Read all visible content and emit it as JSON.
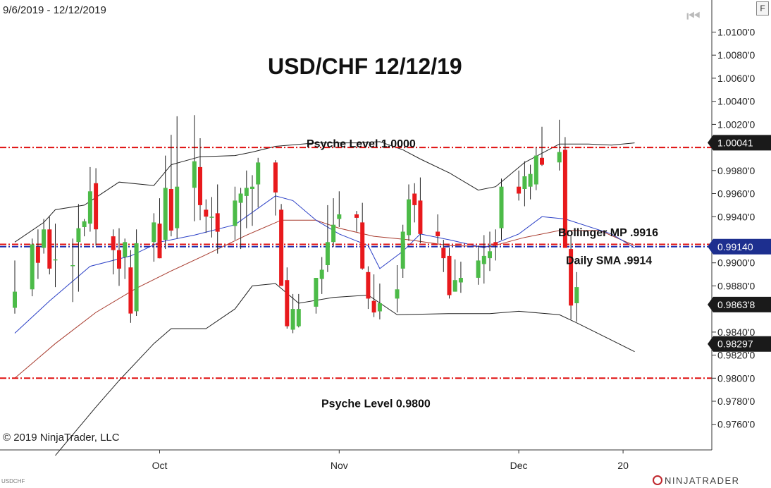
{
  "header": {
    "date_range": "9/6/2019 - 12/12/2019"
  },
  "footer": {
    "copyright": "© 2019 NinjaTrader, LLC",
    "symbol": "USDCHF",
    "logo_text": "NINJATRADER"
  },
  "toolbar": {
    "f_label": "F",
    "nav_glyph": "⏮"
  },
  "chart_data": {
    "type": "candlestick",
    "title": "USD/CHF 12/12/19",
    "y_axis": {
      "ylim": [
        0.9745,
        1.0117
      ],
      "ticks": [
        "1.0100'0",
        "1.0080'0",
        "1.0060'0",
        "1.0040'0",
        "1.0020'0",
        "0.9980'0",
        "0.9960'0",
        "0.9940'0",
        "0.9900'0",
        "0.9880'0",
        "0.9840'0",
        "0.9820'0",
        "0.9800'0",
        "0.9780'0",
        "0.9760'0"
      ]
    },
    "x_axis": {
      "ticks": [
        {
          "label": "Oct",
          "day": "2019-10-01"
        },
        {
          "label": "Nov",
          "day": "2019-11-01"
        },
        {
          "label": "Dec",
          "day": "2019-12-02"
        },
        {
          "label": "20",
          "day": "2019-12-20"
        }
      ]
    },
    "price_tags": [
      {
        "label": "1.00041",
        "value": 1.00041,
        "color": "#1a1a1a"
      },
      {
        "label": "0.99140",
        "value": 0.9914,
        "color": "#1d2f8f"
      },
      {
        "label": "0.9863'8",
        "value": 0.98638,
        "color": "#1a1a1a"
      },
      {
        "label": "0.98297",
        "value": 0.98297,
        "color": "#1a1a1a"
      }
    ],
    "horizontal_lines": [
      {
        "name": "psyche_high",
        "value": 1.0,
        "color": "#e01010"
      },
      {
        "name": "bollinger_mp",
        "value": 0.9916,
        "color": "#e01010"
      },
      {
        "name": "daily_sma",
        "value": 0.9914,
        "color": "#1d2fb0"
      },
      {
        "name": "psyche_low",
        "value": 0.98,
        "color": "#e01010"
      }
    ],
    "annotations": [
      {
        "text": "Psyche Level 1.0000",
        "value": 1.0003
      },
      {
        "text": "Bollinger MP .9916",
        "value": 0.9926
      },
      {
        "text": "Daily SMA .9914",
        "value": 0.9902
      },
      {
        "text": "Psyche Level 0.9800",
        "value": 0.9778
      }
    ],
    "colors": {
      "up": "#4cbb48",
      "down": "#e8191c",
      "sma": "#2a3fc6",
      "midband": "#a83b2e",
      "bands": "#222222"
    },
    "candles": [
      {
        "d": "2019-09-06",
        "o": 0.9861,
        "h": 0.9902,
        "l": 0.9856,
        "c": 0.9875
      },
      {
        "d": "2019-09-09",
        "o": 0.9877,
        "h": 0.9921,
        "l": 0.9871,
        "c": 0.9916
      },
      {
        "d": "2019-09-10",
        "o": 0.9914,
        "h": 0.9929,
        "l": 0.9886,
        "c": 0.99
      },
      {
        "d": "2019-09-11",
        "o": 0.9913,
        "h": 0.9938,
        "l": 0.9908,
        "c": 0.9929
      },
      {
        "d": "2019-09-12",
        "o": 0.9929,
        "h": 0.994,
        "l": 0.989,
        "c": 0.9895
      },
      {
        "d": "2019-09-13",
        "o": 0.9903,
        "h": 0.9934,
        "l": 0.9879,
        "c": 0.9903
      },
      {
        "d": "2019-09-16",
        "o": 0.9898,
        "h": 0.9921,
        "l": 0.9866,
        "c": 0.9898
      },
      {
        "d": "2019-09-17",
        "o": 0.9918,
        "h": 0.9951,
        "l": 0.9875,
        "c": 0.993
      },
      {
        "d": "2019-09-18",
        "o": 0.9931,
        "h": 0.9938,
        "l": 0.9923,
        "c": 0.9936
      },
      {
        "d": "2019-09-19",
        "o": 0.9934,
        "h": 0.9983,
        "l": 0.9927,
        "c": 0.9962
      },
      {
        "d": "2019-09-20",
        "o": 0.9969,
        "h": 0.9982,
        "l": 0.9915,
        "c": 0.9929
      },
      {
        "d": "2019-09-23",
        "o": 0.9923,
        "h": 0.9929,
        "l": 0.989,
        "c": 0.9911
      },
      {
        "d": "2019-09-24",
        "o": 0.9911,
        "h": 0.993,
        "l": 0.988,
        "c": 0.9895
      },
      {
        "d": "2019-09-25",
        "o": 0.9905,
        "h": 0.9921,
        "l": 0.9886,
        "c": 0.9918
      },
      {
        "d": "2019-09-26",
        "o": 0.9896,
        "h": 0.9911,
        "l": 0.9848,
        "c": 0.9856
      },
      {
        "d": "2019-09-27",
        "o": 0.9858,
        "h": 0.9929,
        "l": 0.9854,
        "c": 0.9917
      },
      {
        "d": "2019-09-30",
        "o": 0.9918,
        "h": 0.9943,
        "l": 0.9901,
        "c": 0.9935
      },
      {
        "d": "2019-10-01",
        "o": 0.9934,
        "h": 0.9956,
        "l": 0.9904,
        "c": 0.9904
      },
      {
        "d": "2019-10-02",
        "o": 0.992,
        "h": 0.9993,
        "l": 0.9912,
        "c": 0.9965
      },
      {
        "d": "2019-10-03",
        "o": 0.9964,
        "h": 1.0011,
        "l": 0.9923,
        "c": 0.9928
      },
      {
        "d": "2019-10-04",
        "o": 0.993,
        "h": 1.0027,
        "l": 0.9921,
        "c": 0.9966
      },
      {
        "d": "2019-10-07",
        "o": 0.9965,
        "h": 1.0028,
        "l": 0.9936,
        "c": 0.9988
      },
      {
        "d": "2019-10-08",
        "o": 0.9983,
        "h": 1.0008,
        "l": 0.9937,
        "c": 0.995
      },
      {
        "d": "2019-10-09",
        "o": 0.9946,
        "h": 0.9955,
        "l": 0.9926,
        "c": 0.994
      },
      {
        "d": "2019-10-10",
        "o": 0.994,
        "h": 0.9957,
        "l": 0.9922,
        "c": 0.994
      },
      {
        "d": "2019-10-11",
        "o": 0.9943,
        "h": 0.9968,
        "l": 0.9908,
        "c": 0.9927
      },
      {
        "d": "2019-10-14",
        "o": 0.9932,
        "h": 0.9966,
        "l": 0.992,
        "c": 0.9954
      },
      {
        "d": "2019-10-15",
        "o": 0.9952,
        "h": 0.9965,
        "l": 0.9912,
        "c": 0.996
      },
      {
        "d": "2019-10-16",
        "o": 0.9958,
        "h": 0.998,
        "l": 0.993,
        "c": 0.9965
      },
      {
        "d": "2019-10-17",
        "o": 0.9964,
        "h": 0.9976,
        "l": 0.9932,
        "c": 0.9966
      },
      {
        "d": "2019-10-18",
        "o": 0.9968,
        "h": 0.9991,
        "l": 0.9948,
        "c": 0.9987
      },
      {
        "d": "2019-10-21",
        "o": 0.9987,
        "h": 0.9989,
        "l": 0.9941,
        "c": 0.9961
      },
      {
        "d": "2019-10-22",
        "o": 0.9946,
        "h": 0.9951,
        "l": 0.988,
        "c": 0.988
      },
      {
        "d": "2019-10-23",
        "o": 0.9885,
        "h": 0.9896,
        "l": 0.9843,
        "c": 0.9845
      },
      {
        "d": "2019-10-24",
        "o": 0.9842,
        "h": 0.9873,
        "l": 0.9839,
        "c": 0.986
      },
      {
        "d": "2019-10-25",
        "o": 0.9845,
        "h": 0.9873,
        "l": 0.9844,
        "c": 0.986
      },
      {
        "d": "2019-10-28",
        "o": 0.9862,
        "h": 0.9887,
        "l": 0.9856,
        "c": 0.9887
      },
      {
        "d": "2019-10-29",
        "o": 0.9886,
        "h": 0.9905,
        "l": 0.9873,
        "c": 0.9894
      },
      {
        "d": "2019-10-30",
        "o": 0.9898,
        "h": 0.995,
        "l": 0.9892,
        "c": 0.9918
      },
      {
        "d": "2019-10-31",
        "o": 0.9918,
        "h": 0.9956,
        "l": 0.9914,
        "c": 0.9933
      },
      {
        "d": "2019-11-01",
        "o": 0.9938,
        "h": 0.9962,
        "l": 0.9931,
        "c": 0.9942
      },
      {
        "d": "2019-11-04",
        "o": 0.9942,
        "h": 0.9945,
        "l": 0.9927,
        "c": 0.9939
      },
      {
        "d": "2019-11-05",
        "o": 0.9935,
        "h": 0.9952,
        "l": 0.9894,
        "c": 0.9895
      },
      {
        "d": "2019-11-06",
        "o": 0.9892,
        "h": 0.9897,
        "l": 0.986,
        "c": 0.9869
      },
      {
        "d": "2019-11-07",
        "o": 0.9867,
        "h": 0.989,
        "l": 0.9853,
        "c": 0.9857
      },
      {
        "d": "2019-11-08",
        "o": 0.9858,
        "h": 0.9882,
        "l": 0.9851,
        "c": 0.9865
      },
      {
        "d": "2019-11-11",
        "o": 0.9869,
        "h": 0.9898,
        "l": 0.9857,
        "c": 0.9877
      },
      {
        "d": "2019-11-12",
        "o": 0.9895,
        "h": 0.9933,
        "l": 0.9887,
        "c": 0.9927
      },
      {
        "d": "2019-11-13",
        "o": 0.9924,
        "h": 0.9968,
        "l": 0.9919,
        "c": 0.9955
      },
      {
        "d": "2019-11-14",
        "o": 0.996,
        "h": 0.9969,
        "l": 0.9935,
        "c": 0.995
      },
      {
        "d": "2019-11-15",
        "o": 0.9954,
        "h": 0.9974,
        "l": 0.9917,
        "c": 0.9925
      },
      {
        "d": "2019-11-18",
        "o": 0.9927,
        "h": 0.9942,
        "l": 0.9917,
        "c": 0.9923
      },
      {
        "d": "2019-11-19",
        "o": 0.9913,
        "h": 0.992,
        "l": 0.9892,
        "c": 0.9904
      },
      {
        "d": "2019-11-20",
        "o": 0.9906,
        "h": 0.9913,
        "l": 0.9869,
        "c": 0.9872
      },
      {
        "d": "2019-11-21",
        "o": 0.9875,
        "h": 0.9903,
        "l": 0.9875,
        "c": 0.9885
      },
      {
        "d": "2019-11-22",
        "o": 0.9883,
        "h": 0.9901,
        "l": 0.9874,
        "c": 0.9887
      },
      {
        "d": "2019-11-25",
        "o": 0.9887,
        "h": 0.9915,
        "l": 0.9881,
        "c": 0.9902
      },
      {
        "d": "2019-11-26",
        "o": 0.9899,
        "h": 0.9924,
        "l": 0.9882,
        "c": 0.9906
      },
      {
        "d": "2019-11-27",
        "o": 0.9904,
        "h": 0.9927,
        "l": 0.9893,
        "c": 0.991
      },
      {
        "d": "2019-11-28",
        "o": 0.9918,
        "h": 0.9929,
        "l": 0.9902,
        "c": 0.9915
      },
      {
        "d": "2019-11-29",
        "o": 0.993,
        "h": 0.9973,
        "l": 0.992,
        "c": 0.9966
      },
      {
        "d": "2019-12-02",
        "o": 0.9966,
        "h": 0.998,
        "l": 0.9954,
        "c": 0.996
      },
      {
        "d": "2019-12-03",
        "o": 0.9964,
        "h": 0.9988,
        "l": 0.9949,
        "c": 0.9975
      },
      {
        "d": "2019-12-04",
        "o": 0.9966,
        "h": 0.9985,
        "l": 0.9955,
        "c": 0.9977
      },
      {
        "d": "2019-12-05",
        "o": 0.9968,
        "h": 1.0,
        "l": 0.9963,
        "c": 0.9993
      },
      {
        "d": "2019-12-06",
        "o": 0.9991,
        "h": 1.0018,
        "l": 0.9984,
        "c": 0.9985
      },
      {
        "d": "2019-12-09",
        "o": 0.9987,
        "h": 1.0024,
        "l": 0.998,
        "c": 0.9996
      },
      {
        "d": "2019-12-10",
        "o": 0.9998,
        "h": 1.0009,
        "l": 0.9913,
        "c": 0.9913
      },
      {
        "d": "2019-12-11",
        "o": 0.9912,
        "h": 0.9923,
        "l": 0.9851,
        "c": 0.9863
      },
      {
        "d": "2019-12-12",
        "o": 0.9865,
        "h": 0.9892,
        "l": 0.9849,
        "c": 0.9879
      }
    ],
    "sma": [
      {
        "d": "2019-09-06",
        "v": 0.9839
      },
      {
        "d": "2019-09-12",
        "v": 0.9867
      },
      {
        "d": "2019-09-19",
        "v": 0.9897
      },
      {
        "d": "2019-09-26",
        "v": 0.9906
      },
      {
        "d": "2019-10-01",
        "v": 0.9918
      },
      {
        "d": "2019-10-07",
        "v": 0.9924
      },
      {
        "d": "2019-10-14",
        "v": 0.9933
      },
      {
        "d": "2019-10-21",
        "v": 0.9958
      },
      {
        "d": "2019-10-24",
        "v": 0.9954
      },
      {
        "d": "2019-10-28",
        "v": 0.9937
      },
      {
        "d": "2019-11-01",
        "v": 0.9925
      },
      {
        "d": "2019-11-06",
        "v": 0.9915
      },
      {
        "d": "2019-11-08",
        "v": 0.9895
      },
      {
        "d": "2019-11-12",
        "v": 0.991
      },
      {
        "d": "2019-11-15",
        "v": 0.9925
      },
      {
        "d": "2019-11-20",
        "v": 0.992
      },
      {
        "d": "2019-11-26",
        "v": 0.9913
      },
      {
        "d": "2019-12-02",
        "v": 0.9925
      },
      {
        "d": "2019-12-06",
        "v": 0.994
      },
      {
        "d": "2019-12-10",
        "v": 0.9938
      },
      {
        "d": "2019-12-18",
        "v": 0.9925
      },
      {
        "d": "2019-12-22",
        "v": 0.9913
      }
    ],
    "bollinger_mid": [
      {
        "d": "2019-09-06",
        "v": 0.98
      },
      {
        "d": "2019-09-13",
        "v": 0.983
      },
      {
        "d": "2019-09-20",
        "v": 0.9857
      },
      {
        "d": "2019-09-27",
        "v": 0.9878
      },
      {
        "d": "2019-10-03",
        "v": 0.9893
      },
      {
        "d": "2019-10-09",
        "v": 0.9907
      },
      {
        "d": "2019-10-16",
        "v": 0.9924
      },
      {
        "d": "2019-10-22",
        "v": 0.9937
      },
      {
        "d": "2019-10-28",
        "v": 0.9937
      },
      {
        "d": "2019-11-01",
        "v": 0.993
      },
      {
        "d": "2019-11-07",
        "v": 0.9923
      },
      {
        "d": "2019-11-13",
        "v": 0.992
      },
      {
        "d": "2019-11-20",
        "v": 0.9915
      },
      {
        "d": "2019-11-27",
        "v": 0.9914
      },
      {
        "d": "2019-12-03",
        "v": 0.9922
      },
      {
        "d": "2019-12-09",
        "v": 0.9928
      },
      {
        "d": "2019-12-16",
        "v": 0.9928
      },
      {
        "d": "2019-12-22",
        "v": 0.9915
      }
    ],
    "bollinger_upper": [
      {
        "d": "2019-09-06",
        "v": 0.9918
      },
      {
        "d": "2019-09-11",
        "v": 0.9935
      },
      {
        "d": "2019-09-13",
        "v": 0.9946
      },
      {
        "d": "2019-09-18",
        "v": 0.995
      },
      {
        "d": "2019-09-24",
        "v": 0.997
      },
      {
        "d": "2019-09-30",
        "v": 0.9967
      },
      {
        "d": "2019-10-03",
        "v": 0.9985
      },
      {
        "d": "2019-10-08",
        "v": 0.9992
      },
      {
        "d": "2019-10-14",
        "v": 0.9993
      },
      {
        "d": "2019-10-17",
        "v": 0.9996
      },
      {
        "d": "2019-10-21",
        "v": 1.0001
      },
      {
        "d": "2019-10-28",
        "v": 1.0004
      },
      {
        "d": "2019-11-04",
        "v": 1.0004
      },
      {
        "d": "2019-11-08",
        "v": 1.0005
      },
      {
        "d": "2019-11-12",
        "v": 0.9998
      },
      {
        "d": "2019-11-15",
        "v": 0.999
      },
      {
        "d": "2019-11-20",
        "v": 0.9978
      },
      {
        "d": "2019-11-25",
        "v": 0.9963
      },
      {
        "d": "2019-11-28",
        "v": 0.9966
      },
      {
        "d": "2019-12-03",
        "v": 0.9987
      },
      {
        "d": "2019-12-09",
        "v": 1.0003
      },
      {
        "d": "2019-12-14",
        "v": 1.0003
      },
      {
        "d": "2019-12-18",
        "v": 1.0002
      },
      {
        "d": "2019-12-22",
        "v": 1.0004
      }
    ],
    "bollinger_lower": [
      {
        "d": "2019-09-13",
        "v": 0.9733
      },
      {
        "d": "2019-09-20",
        "v": 0.9775
      },
      {
        "d": "2019-09-24",
        "v": 0.9798
      },
      {
        "d": "2019-09-30",
        "v": 0.983
      },
      {
        "d": "2019-10-03",
        "v": 0.9843
      },
      {
        "d": "2019-10-09",
        "v": 0.9843
      },
      {
        "d": "2019-10-14",
        "v": 0.986
      },
      {
        "d": "2019-10-17",
        "v": 0.988
      },
      {
        "d": "2019-10-21",
        "v": 0.9882
      },
      {
        "d": "2019-10-25",
        "v": 0.9865
      },
      {
        "d": "2019-10-31",
        "v": 0.987
      },
      {
        "d": "2019-11-06",
        "v": 0.9872
      },
      {
        "d": "2019-11-11",
        "v": 0.9855
      },
      {
        "d": "2019-11-20",
        "v": 0.9856
      },
      {
        "d": "2019-11-27",
        "v": 0.9856
      },
      {
        "d": "2019-12-02",
        "v": 0.9858
      },
      {
        "d": "2019-12-09",
        "v": 0.9855
      },
      {
        "d": "2019-12-12",
        "v": 0.9848
      },
      {
        "d": "2019-12-18",
        "v": 0.9833
      },
      {
        "d": "2019-12-22",
        "v": 0.9823
      }
    ]
  }
}
